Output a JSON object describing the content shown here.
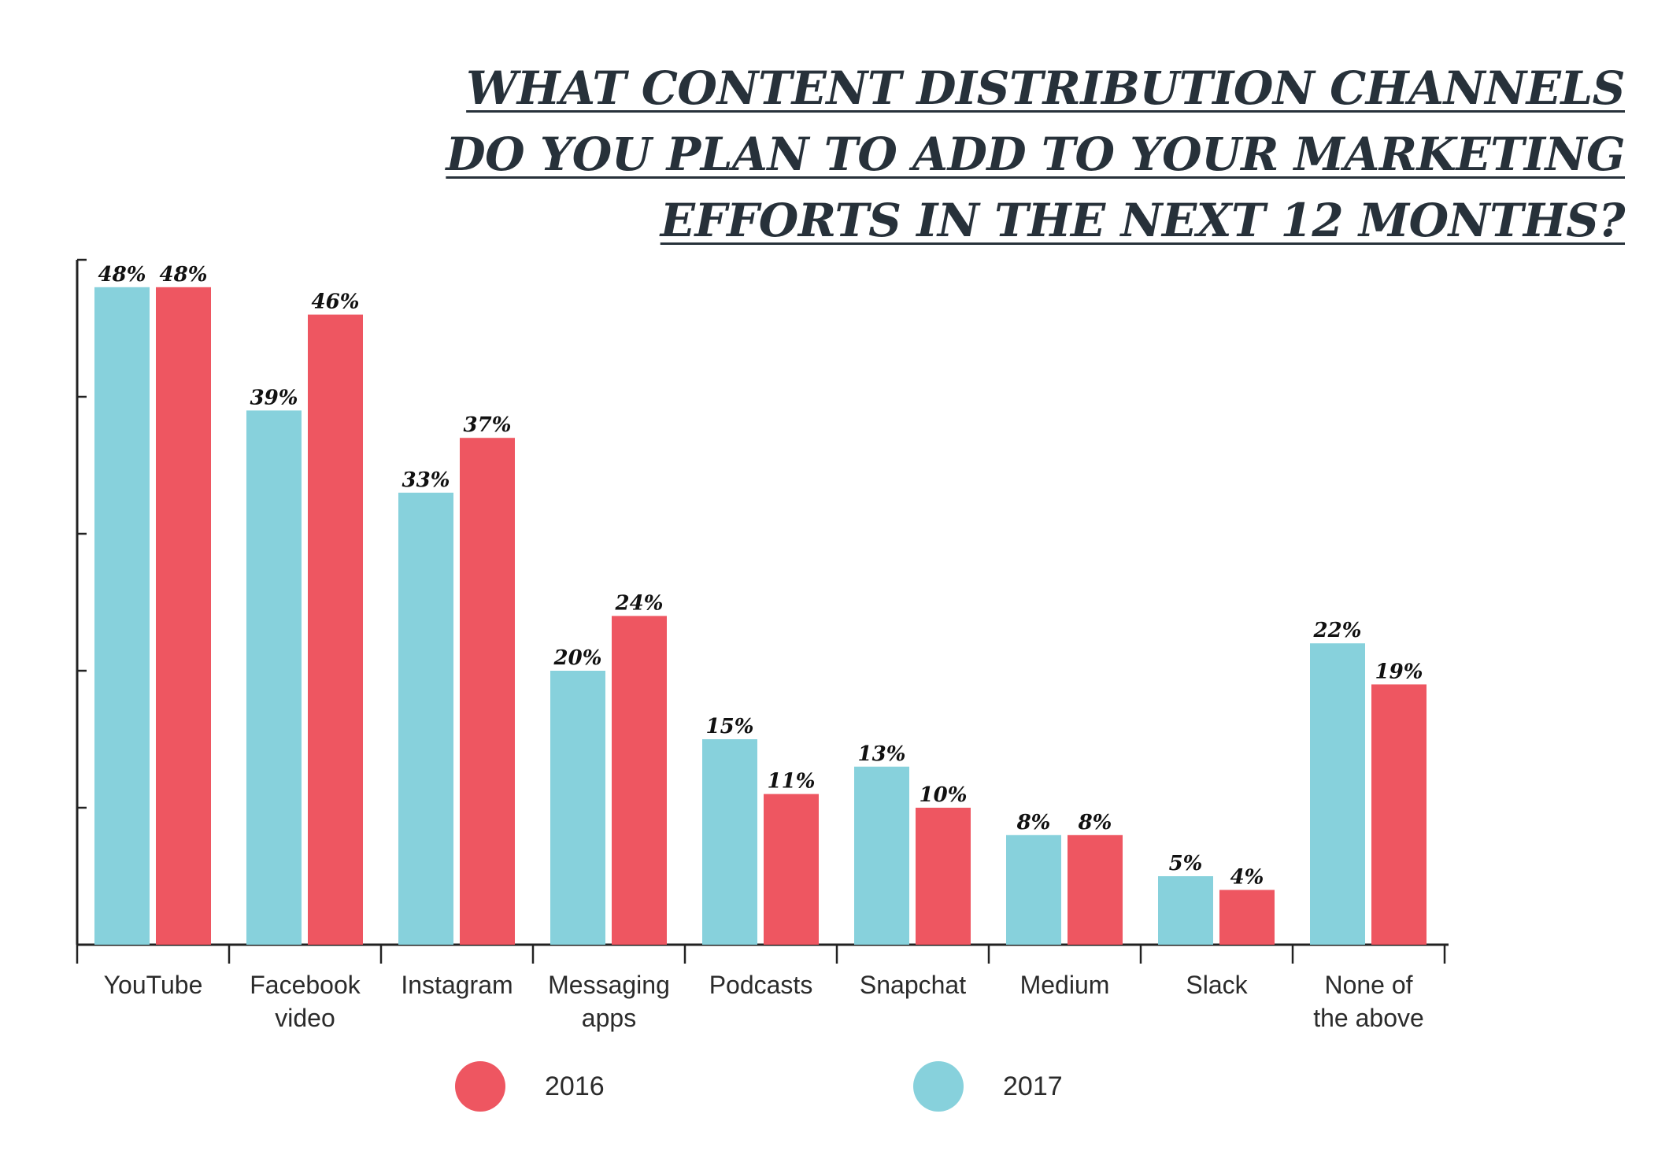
{
  "title_lines": [
    "WHAT CONTENT DISTRIBUTION CHANNELS",
    "DO YOU PLAN TO ADD TO YOUR MARKETING",
    "EFFORTS IN THE NEXT 12 MONTHS?"
  ],
  "colors": {
    "y2016": "#ee5661",
    "y2017": "#87d1dc",
    "axis": "#222222",
    "title": "#27313a"
  },
  "legend": [
    {
      "label": "2016",
      "color": "#ee5661"
    },
    {
      "label": "2017",
      "color": "#87d1dc"
    }
  ],
  "chart_data": {
    "type": "bar",
    "title": "WHAT CONTENT DISTRIBUTION CHANNELS DO YOU PLAN TO ADD TO YOUR MARKETING EFFORTS IN THE NEXT 12 MONTHS?",
    "categories": [
      [
        "YouTube"
      ],
      [
        "Facebook",
        "video"
      ],
      [
        "Instagram"
      ],
      [
        "Messaging",
        "apps"
      ],
      [
        "Podcasts"
      ],
      [
        "Snapchat"
      ],
      [
        "Medium"
      ],
      [
        "Slack"
      ],
      [
        "None of",
        "the above"
      ]
    ],
    "series": [
      {
        "name": "2017",
        "color": "#87d1dc",
        "values": [
          48,
          39,
          33,
          20,
          15,
          13,
          8,
          5,
          22
        ]
      },
      {
        "name": "2016",
        "color": "#ee5661",
        "values": [
          48,
          46,
          37,
          24,
          11,
          10,
          8,
          4,
          19
        ]
      }
    ],
    "value_labels": [
      [
        "48%",
        "39%",
        "33%",
        "20%",
        "15%",
        "13%",
        "8%",
        "5%",
        "22%"
      ],
      [
        "48%",
        "46%",
        "37%",
        "24%",
        "11%",
        "10%",
        "8%",
        "4%",
        "19%"
      ]
    ],
    "ylim": [
      0,
      50
    ],
    "y_ticks": [
      0,
      10,
      20,
      30,
      40,
      50
    ],
    "show_y_tick_labels": false,
    "grid": false,
    "legend_position": "bottom"
  }
}
